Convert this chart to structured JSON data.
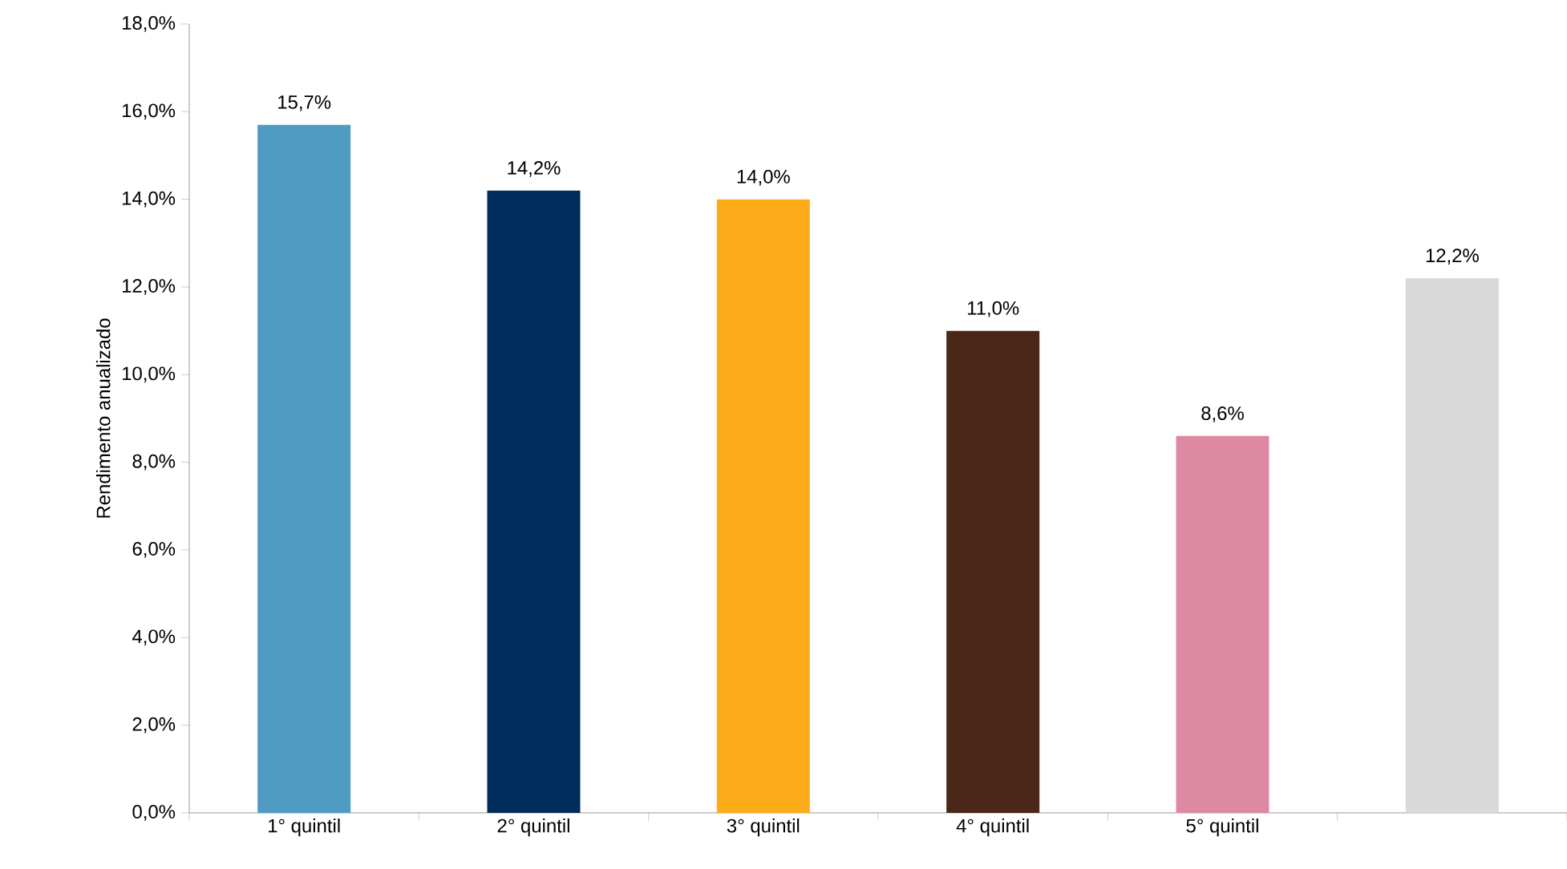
{
  "chart_data": {
    "type": "bar",
    "ylabel": "Rendimento anualizado",
    "categories": [
      "1° quintil",
      "2° quintil",
      "3° quintil",
      "4° quintil",
      "5° quintil",
      null
    ],
    "values": [
      15.7,
      14.2,
      14.0,
      11.0,
      8.6,
      12.2
    ],
    "colors": [
      "#4f9bc2",
      "#002d5b",
      "#fdab19",
      "#4a2716",
      "#de89a2",
      "#d9d9d9"
    ],
    "value_labels": [
      "15,7%",
      "14,2%",
      "14,0%",
      "11,0%",
      "8,6%",
      "12,2%"
    ],
    "ylim": [
      0,
      18
    ],
    "yticks": [
      {
        "value": 0,
        "label": "0,0%"
      },
      {
        "value": 2,
        "label": "2,0%"
      },
      {
        "value": 4,
        "label": "4,0%"
      },
      {
        "value": 6,
        "label": "6,0%"
      },
      {
        "value": 8,
        "label": "8,0%"
      },
      {
        "value": 10,
        "label": "10,0%"
      },
      {
        "value": 12,
        "label": "12,0%"
      },
      {
        "value": 14,
        "label": "14,0%"
      },
      {
        "value": 16,
        "label": "16,0%"
      },
      {
        "value": 18,
        "label": "18,0%"
      }
    ],
    "grid": false
  }
}
